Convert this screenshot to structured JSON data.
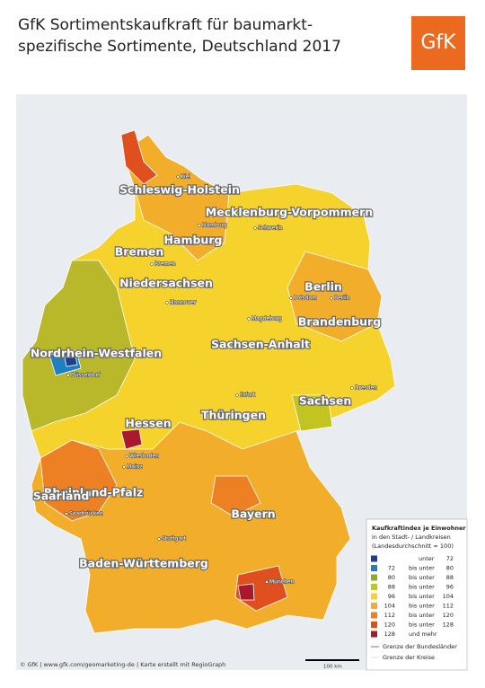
{
  "header": {
    "title_lines": [
      "GfK Sortimentskaufkraft für baumarkt-",
      "spezifische Sortimente, Deutschland 2017"
    ],
    "logo": "GfK"
  },
  "map": {
    "states": [
      "Schleswig-Holstein",
      "Mecklenburg-Vorpommern",
      "Hamburg",
      "Bremen",
      "Niedersachsen",
      "Berlin",
      "Brandenburg",
      "Sachsen-Anhalt",
      "Nordrhein-Westfalen",
      "Sachsen",
      "Thüringen",
      "Hessen",
      "Rheinland-Pfalz",
      "Saarland",
      "Bayern",
      "Baden-Württemberg"
    ],
    "cities": [
      "Kiel",
      "Hamburg",
      "Schwerin",
      "Bremen",
      "Potsdam",
      "Berlin",
      "Hannover",
      "Magdeburg",
      "Düsseldorf",
      "Erfurt",
      "Dresden",
      "Wiesbaden",
      "Mainz",
      "Saarbrücken",
      "Stuttgart",
      "München"
    ]
  },
  "legend": {
    "title_lines": [
      "Kaufkraftindex je Einwohner",
      "in den Stadt- / Landkreisen",
      "(Landesdurchschnitt = 100)"
    ],
    "classes": [
      {
        "color": "#1d3f8f",
        "parts": [
          "unter",
          72
        ]
      },
      {
        "color": "#1f7fc3",
        "parts": [
          72,
          "bis unter",
          80
        ]
      },
      {
        "color": "#8fae1b",
        "parts": [
          80,
          "bis unter",
          88
        ]
      },
      {
        "color": "#c2c51f",
        "parts": [
          88,
          "bis unter",
          96
        ]
      },
      {
        "color": "#f6d22c",
        "parts": [
          96,
          "bis unter",
          104
        ]
      },
      {
        "color": "#f2ae2b",
        "parts": [
          104,
          "bis unter",
          112
        ]
      },
      {
        "color": "#ec8023",
        "parts": [
          112,
          "bis unter",
          120
        ]
      },
      {
        "color": "#e0501f",
        "parts": [
          120,
          "bis unter",
          128
        ]
      },
      {
        "color": "#a8192e",
        "parts": [
          128,
          "und mehr"
        ]
      }
    ],
    "lines": [
      "Grenze der Bundesländer",
      "Grenze der Kreise"
    ]
  },
  "scale_bar": "100 km",
  "footer": "© GfK | www.gfk.com/geomarketing-de | Karte erstellt mit RegioGraph"
}
